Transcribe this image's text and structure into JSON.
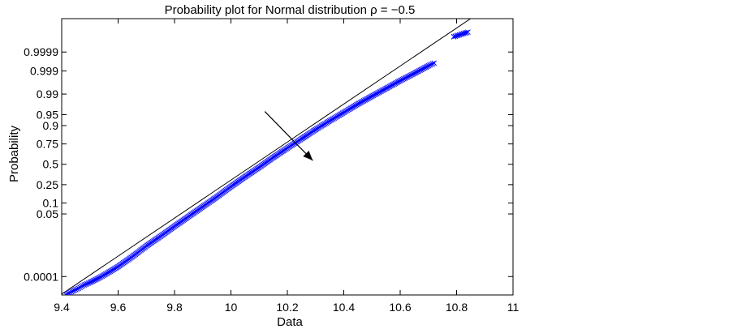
{
  "chart_data": {
    "type": "scatter",
    "title": "Probability plot for Normal distribution ρ = −0.5",
    "xlabel": "Data",
    "ylabel": "Probability",
    "xlim": [
      9.4,
      11
    ],
    "x_ticks": [
      {
        "value": 9.4,
        "label": "9.4"
      },
      {
        "value": 9.6,
        "label": "9.6"
      },
      {
        "value": 9.8,
        "label": "9.8"
      },
      {
        "value": 10,
        "label": "10"
      },
      {
        "value": 10.2,
        "label": "10.2"
      },
      {
        "value": 10.4,
        "label": "10.4"
      },
      {
        "value": 10.6,
        "label": "10.6"
      },
      {
        "value": 10.8,
        "label": "10.8"
      },
      {
        "value": 11,
        "label": "11"
      }
    ],
    "y_scale": "normal probability",
    "ylim": [
      7.5e-06,
      0.9999993
    ],
    "y_ticks": [
      {
        "value": 0.0001,
        "label": "0.0001"
      },
      {
        "value": 0.05,
        "label": "0.05"
      },
      {
        "value": 0.1,
        "label": "0.1"
      },
      {
        "value": 0.25,
        "label": "0.25"
      },
      {
        "value": 0.5,
        "label": "0.5"
      },
      {
        "value": 0.75,
        "label": "0.75"
      },
      {
        "value": 0.9,
        "label": "0.9"
      },
      {
        "value": 0.95,
        "label": "0.95"
      },
      {
        "value": 0.99,
        "label": "0.99"
      },
      {
        "value": 0.999,
        "label": "0.999"
      },
      {
        "value": 0.9999,
        "label": "0.9999"
      }
    ],
    "series": [
      {
        "marker": "x",
        "color": "#0000ff",
        "points": [
          [
            9.415,
            8e-06
          ],
          [
            9.43,
            1.1e-05
          ],
          [
            9.445,
            1.5e-05
          ],
          [
            9.46,
            2e-05
          ],
          [
            9.47,
            2.6e-05
          ],
          [
            9.48,
            3.2e-05
          ],
          [
            9.5,
            4.5e-05
          ],
          [
            9.53,
            8e-05
          ],
          [
            9.56,
            0.00015
          ],
          [
            9.6,
            0.00035
          ],
          [
            9.65,
            0.0011
          ],
          [
            9.7,
            0.0034
          ],
          [
            9.75,
            0.0085
          ],
          [
            9.8,
            0.02
          ],
          [
            9.85,
            0.042
          ],
          [
            9.9,
            0.08
          ],
          [
            9.95,
            0.14
          ],
          [
            10.0,
            0.23
          ],
          [
            10.05,
            0.34
          ],
          [
            10.1,
            0.46
          ],
          [
            10.15,
            0.59
          ],
          [
            10.2,
            0.705
          ],
          [
            10.25,
            0.8
          ],
          [
            10.3,
            0.875
          ],
          [
            10.35,
            0.925
          ],
          [
            10.4,
            0.957
          ],
          [
            10.45,
            0.977
          ],
          [
            10.5,
            0.988
          ],
          [
            10.55,
            0.994
          ],
          [
            10.6,
            0.9972
          ],
          [
            10.65,
            0.9987
          ],
          [
            10.7,
            0.99945
          ],
          [
            10.72,
            0.9996
          ],
          [
            10.79,
            0.999988
          ],
          [
            10.81,
            0.999991
          ],
          [
            10.84,
            0.999994
          ]
        ]
      }
    ],
    "reference_line": {
      "color": "#000000",
      "points": [
        [
          9.4,
          8.5e-06
        ],
        [
          10.86,
          0.9999995
        ]
      ]
    },
    "annotation_arrow": {
      "from": [
        10.12,
        0.96
      ],
      "to": [
        10.29,
        0.55
      ]
    }
  }
}
